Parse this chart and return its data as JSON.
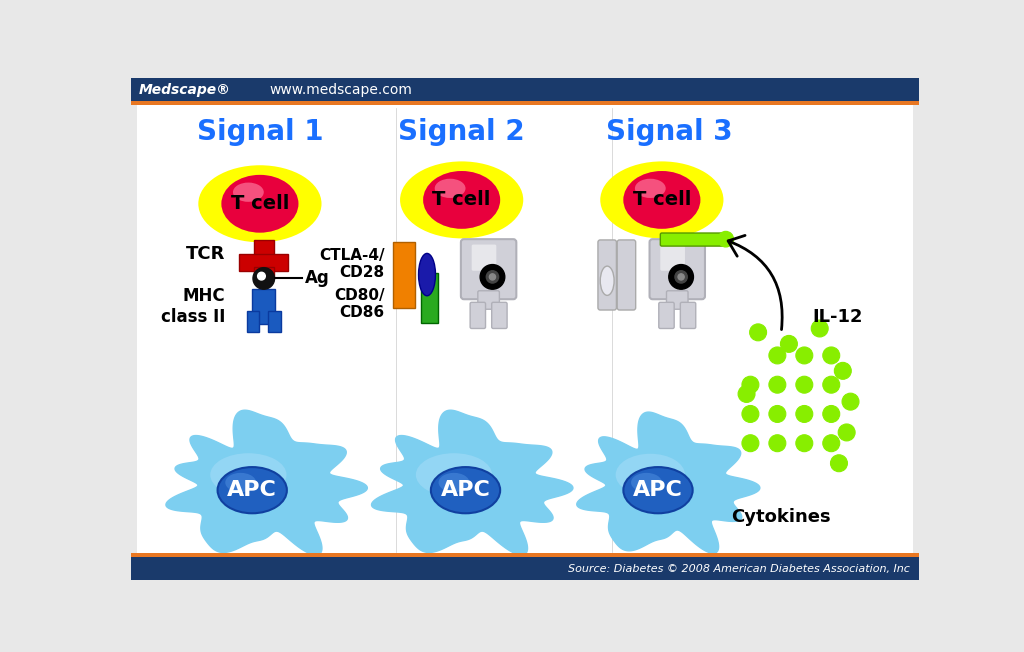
{
  "title_bar_color": "#1a3a6b",
  "title_bar_orange": "#e87722",
  "bg_color": "#e8e8e8",
  "header_text_left": "Medscape®",
  "header_text_right": "www.medscape.com",
  "footer_text": "Source: Diabetes © 2008 American Diabetes Association, Inc",
  "signal1_title": "Signal 1",
  "signal2_title": "Signal 2",
  "signal3_title": "Signal 3",
  "tcell_color_center": "#e8003d",
  "tcell_color_edge": "#ff69b4",
  "tcell_glow": "#ffff00",
  "apc_body_color": "#7dcff0",
  "apc_nucleus_color": "#2060c0",
  "tcr_color": "#cc0000",
  "mhc_color": "#1a5abf",
  "ag_color": "#111111",
  "receptor2_orange": "#f08000",
  "receptor2_blue": "#1a1aaa",
  "receptor2_green": "#2aaa20",
  "cytokine_color": "#88ee00",
  "receptor3_color": "#d0d0d8",
  "signal_title_color": "#1a6fff",
  "il12_arrow_color": "#111111",
  "footer_bar_color": "#1a3a6b",
  "white_inner": "#ffffff",
  "panel_bg": "#ffffff"
}
